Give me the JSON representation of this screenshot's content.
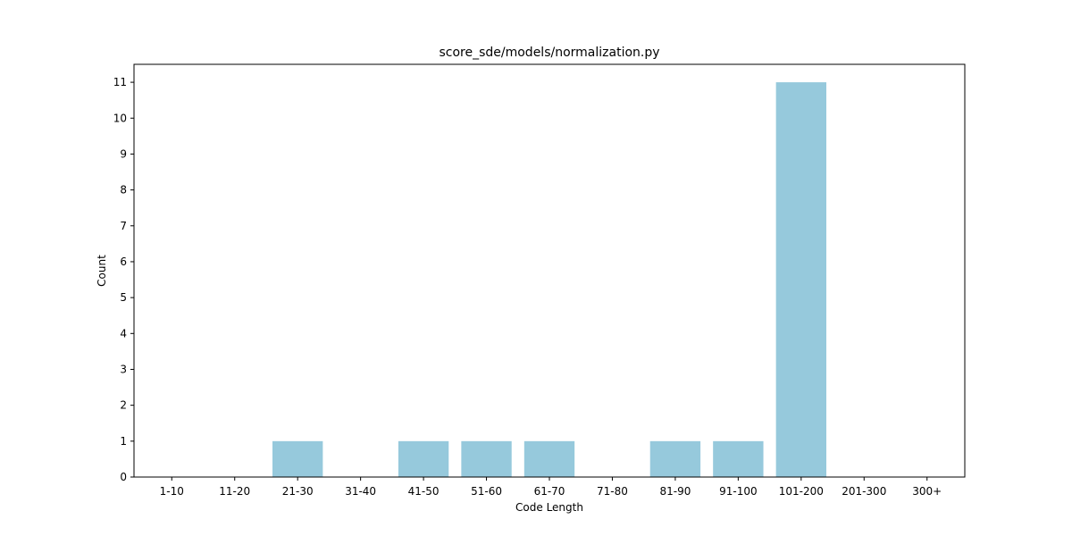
{
  "chart_data": {
    "type": "bar",
    "title": "score_sde/models/normalization.py",
    "xlabel": "Code Length",
    "ylabel": "Count",
    "categories": [
      "1-10",
      "11-20",
      "21-30",
      "31-40",
      "41-50",
      "51-60",
      "61-70",
      "71-80",
      "81-90",
      "91-100",
      "101-200",
      "201-300",
      "300+"
    ],
    "values": [
      0,
      0,
      1,
      0,
      1,
      1,
      1,
      0,
      1,
      1,
      11,
      0,
      0
    ],
    "yticks": [
      0,
      1,
      2,
      3,
      4,
      5,
      6,
      7,
      8,
      9,
      10,
      11
    ],
    "ylim": [
      0,
      11.5
    ],
    "bar_color": "#96c9dc",
    "grid": false,
    "legend": "none"
  }
}
